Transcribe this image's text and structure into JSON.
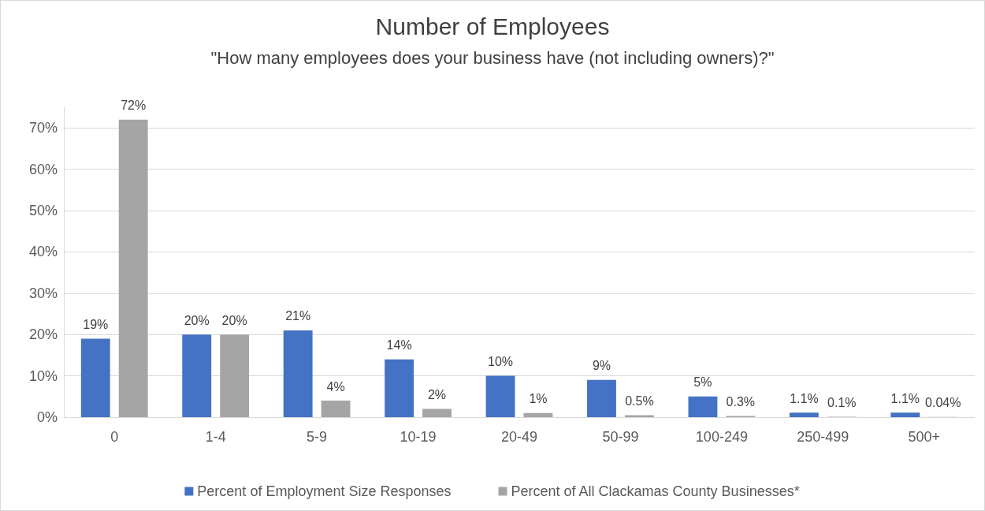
{
  "chart_data": {
    "type": "bar",
    "title": "Number of Employees",
    "subtitle": "\"How many employees does your business have (not including owners)?\"",
    "categories": [
      "0",
      "1-4",
      "5-9",
      "10-19",
      "20-49",
      "50-99",
      "100-249",
      "250-499",
      "500+"
    ],
    "series": [
      {
        "name": "Percent of Employment Size Responses",
        "color": "#4472c4",
        "values": [
          19,
          20,
          21,
          14,
          10,
          9,
          5,
          1.1,
          1.1
        ],
        "value_labels": [
          "19%",
          "20%",
          "21%",
          "14%",
          "10%",
          "9%",
          "5%",
          "1.1%",
          "1.1%"
        ]
      },
      {
        "name": "Percent of All Clackamas County Businesses*",
        "color": "#a5a5a5",
        "values": [
          72,
          20,
          4,
          2,
          1,
          0.5,
          0.3,
          0.1,
          0.04
        ],
        "value_labels": [
          "72%",
          "20%",
          "4%",
          "2%",
          "1%",
          "0.5%",
          "0.3%",
          "0.1%",
          "0.04%"
        ]
      }
    ],
    "ylim": [
      0,
      75
    ],
    "yticks": [
      {
        "value": 0,
        "label": "0%"
      },
      {
        "value": 10,
        "label": "10%"
      },
      {
        "value": 20,
        "label": "20%"
      },
      {
        "value": 30,
        "label": "30%"
      },
      {
        "value": 40,
        "label": "40%"
      },
      {
        "value": 50,
        "label": "50%"
      },
      {
        "value": 60,
        "label": "60%"
      },
      {
        "value": 70,
        "label": "70%"
      }
    ],
    "grid": "y",
    "legend": "bottom"
  }
}
